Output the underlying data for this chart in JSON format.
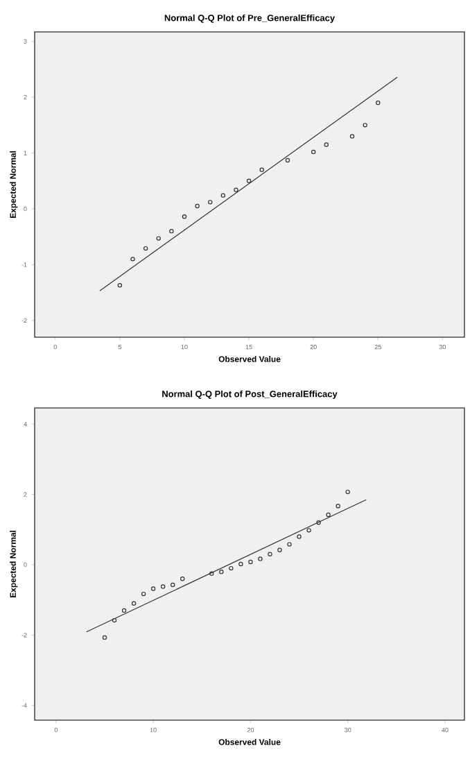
{
  "chart_data": [
    {
      "type": "scatter",
      "title": "Normal Q-Q Plot of Pre_GeneralEfficacy",
      "xlabel": "Observed Value",
      "ylabel": "Expected Normal",
      "xlim": [
        -1.6,
        31.7
      ],
      "ylim": [
        -2.3,
        3.17
      ],
      "xticks": [
        0,
        5,
        10,
        15,
        20,
        25,
        30
      ],
      "yticks": [
        -2,
        -1,
        0,
        1,
        2,
        3
      ],
      "grid": false,
      "series": [
        {
          "color": "#333333",
          "marker": "circle",
          "x": [
            5,
            6,
            7,
            8,
            9,
            10,
            11,
            12,
            13,
            14,
            15,
            16,
            18,
            20,
            21,
            23,
            24,
            25
          ],
          "values": [
            -1.37,
            -0.9,
            -0.71,
            -0.53,
            -0.4,
            -0.14,
            0.05,
            0.12,
            0.24,
            0.34,
            0.5,
            0.7,
            0.87,
            1.02,
            1.15,
            1.3,
            1.5,
            1.9
          ]
        },
        {
          "type": "line",
          "color": "#333333",
          "marker": "none",
          "line_style": "solid",
          "x": [
            3.44,
            26.5
          ],
          "values": [
            -1.47,
            2.36
          ]
        }
      ]
    },
    {
      "type": "scatter",
      "title": "Normal Q-Q Plot of Post_GeneralEfficacy",
      "xlabel": "Observed Value",
      "ylabel": "Expected Normal",
      "xlim": [
        -2.2,
        42
      ],
      "ylim": [
        -4.42,
        4.46
      ],
      "xticks": [
        0,
        10,
        20,
        30,
        40
      ],
      "yticks": [
        -4,
        -2,
        0,
        2,
        4
      ],
      "grid": false,
      "series": [
        {
          "color": "#333333",
          "marker": "circle",
          "x": [
            5,
            6,
            7,
            8,
            9,
            10,
            11,
            12,
            13,
            16,
            17,
            18,
            19,
            20,
            21,
            22,
            23,
            24,
            25,
            26,
            27,
            28,
            29,
            30
          ],
          "values": [
            -2.07,
            -1.58,
            -1.3,
            -1.1,
            -0.83,
            -0.68,
            -0.62,
            -0.57,
            -0.4,
            -0.25,
            -0.2,
            -0.1,
            0.02,
            0.08,
            0.17,
            0.3,
            0.42,
            0.58,
            0.8,
            0.98,
            1.2,
            1.42,
            1.67,
            2.07
          ]
        },
        {
          "type": "line",
          "color": "#333333",
          "marker": "none",
          "line_style": "solid",
          "x": [
            3.13,
            31.9
          ],
          "values": [
            -1.91,
            1.85
          ]
        }
      ]
    }
  ]
}
